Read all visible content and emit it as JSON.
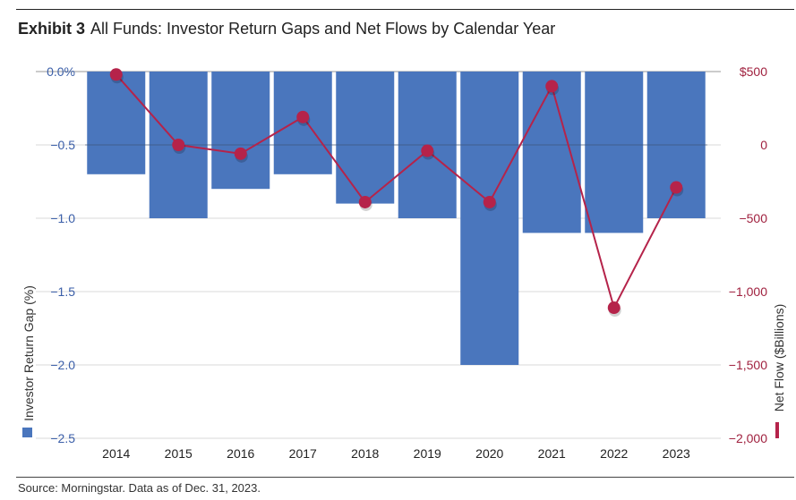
{
  "header": {
    "exhibit_label": "Exhibit 3",
    "title": "All Funds: Investor Return Gaps and Net Flows by Calendar Year"
  },
  "source": "Source: Morningstar. Data as of Dec. 31, 2023.",
  "colors": {
    "bar": "#4a76bd",
    "line": "#b5234a",
    "left_axis_text": "#3a5ea8",
    "right_axis_text": "#a0213f",
    "grid": "#d9d9d9"
  },
  "chart_data": {
    "type": "bar+line",
    "categories": [
      "2014",
      "2015",
      "2016",
      "2017",
      "2018",
      "2019",
      "2020",
      "2021",
      "2022",
      "2023"
    ],
    "series": [
      {
        "name": "Investor Return Gap (%)",
        "kind": "bar",
        "axis": "left",
        "values": [
          -0.7,
          -1.0,
          -0.8,
          -0.7,
          -0.9,
          -1.0,
          -2.0,
          -1.1,
          -1.1,
          -1.0
        ]
      },
      {
        "name": "Net Flow ($Billions)",
        "kind": "line",
        "axis": "right",
        "values": [
          480,
          0,
          -60,
          190,
          -390,
          -40,
          -390,
          400,
          -1110,
          -290
        ]
      }
    ],
    "y_left": {
      "label": "Investor Return Gap (%)",
      "range": [
        -2.5,
        0
      ],
      "ticks": [
        0,
        -0.5,
        -1.0,
        -1.5,
        -2.0,
        -2.5
      ],
      "tick_labels": [
        "0.0%",
        "−0.5",
        "−1.0",
        "−1.5",
        "−2.0",
        "−2.5"
      ]
    },
    "y_right": {
      "label": "Net Flow ($Billions)",
      "range": [
        -2000,
        500
      ],
      "ticks": [
        500,
        0,
        -500,
        -1000,
        -1500,
        -2000
      ],
      "tick_labels": [
        "$500",
        "0",
        "−500",
        "−1,000",
        "−1,500",
        "−2,000"
      ]
    },
    "grid": true
  }
}
